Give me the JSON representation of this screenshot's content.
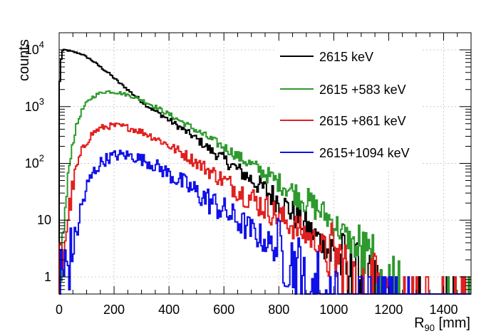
{
  "chart_data": {
    "type": "line",
    "style": "step-histogram",
    "title": "",
    "xlabel": "R",
    "xlabel_sub": "90",
    "xlabel_unit": " [mm]",
    "ylabel": "counts",
    "xlim": [
      0,
      1500
    ],
    "ylim": [
      0.5,
      20000
    ],
    "yscale": "log",
    "grid": true,
    "legend_position": "top-right",
    "x_ticks": [
      {
        "value": 0,
        "label": "0"
      },
      {
        "value": 200,
        "label": "200"
      },
      {
        "value": 400,
        "label": "400"
      },
      {
        "value": 600,
        "label": "600"
      },
      {
        "value": 800,
        "label": "800"
      },
      {
        "value": 1000,
        "label": "1000"
      },
      {
        "value": 1200,
        "label": "1200"
      },
      {
        "value": 1400,
        "label": "1400"
      }
    ],
    "y_ticks": [
      {
        "value": 1,
        "label": "1"
      },
      {
        "value": 10,
        "label": "10"
      },
      {
        "value": 100,
        "label": "10",
        "sup": "2"
      },
      {
        "value": 1000,
        "label": "10",
        "sup": "3"
      },
      {
        "value": 10000,
        "label": "10",
        "sup": "4"
      }
    ],
    "series": [
      {
        "name": "2615 keV",
        "color": "#000000",
        "points": [
          [
            0,
            1500
          ],
          [
            5,
            5000
          ],
          [
            10,
            9500
          ],
          [
            20,
            10000
          ],
          [
            40,
            9500
          ],
          [
            60,
            9000
          ],
          [
            80,
            8500
          ],
          [
            100,
            7500
          ],
          [
            120,
            6500
          ],
          [
            140,
            5500
          ],
          [
            160,
            4600
          ],
          [
            180,
            3900
          ],
          [
            200,
            3200
          ],
          [
            220,
            2600
          ],
          [
            240,
            2200
          ],
          [
            260,
            1800
          ],
          [
            280,
            1500
          ],
          [
            300,
            1250
          ],
          [
            320,
            1050
          ],
          [
            340,
            900
          ],
          [
            360,
            780
          ],
          [
            380,
            680
          ],
          [
            400,
            580
          ],
          [
            420,
            500
          ],
          [
            440,
            430
          ],
          [
            460,
            370
          ],
          [
            480,
            320
          ],
          [
            500,
            270
          ],
          [
            520,
            230
          ],
          [
            540,
            190
          ],
          [
            560,
            160
          ],
          [
            580,
            140
          ],
          [
            600,
            118
          ],
          [
            620,
            100
          ],
          [
            640,
            85
          ],
          [
            660,
            72
          ],
          [
            680,
            62
          ],
          [
            700,
            52
          ],
          [
            720,
            44
          ],
          [
            740,
            37
          ],
          [
            760,
            31
          ],
          [
            780,
            26
          ],
          [
            800,
            22
          ],
          [
            820,
            18
          ],
          [
            840,
            15
          ],
          [
            860,
            12
          ],
          [
            880,
            10
          ],
          [
            900,
            8
          ],
          [
            920,
            6
          ],
          [
            940,
            5
          ],
          [
            960,
            4
          ],
          [
            980,
            3
          ],
          [
            1000,
            2.4
          ],
          [
            1020,
            2
          ],
          [
            1040,
            1.6
          ],
          [
            1060,
            1.3
          ],
          [
            1080,
            1.1
          ],
          [
            1100,
            0.9
          ],
          [
            1120,
            0.75
          ],
          [
            1140,
            0.65
          ],
          [
            1160,
            0.58
          ],
          [
            1180,
            0.52
          ]
        ]
      },
      {
        "name": "2615 +583 keV",
        "color": "#2e9a2e",
        "points": [
          [
            0,
            1
          ],
          [
            20,
            10
          ],
          [
            40,
            130
          ],
          [
            60,
            400
          ],
          [
            80,
            800
          ],
          [
            100,
            1150
          ],
          [
            120,
            1450
          ],
          [
            140,
            1650
          ],
          [
            160,
            1800
          ],
          [
            180,
            1850
          ],
          [
            200,
            1800
          ],
          [
            220,
            1750
          ],
          [
            240,
            1650
          ],
          [
            260,
            1550
          ],
          [
            280,
            1420
          ],
          [
            300,
            1300
          ],
          [
            320,
            1180
          ],
          [
            340,
            1050
          ],
          [
            360,
            940
          ],
          [
            380,
            830
          ],
          [
            400,
            730
          ],
          [
            420,
            640
          ],
          [
            460,
            500
          ],
          [
            500,
            380
          ],
          [
            540,
            290
          ],
          [
            580,
            220
          ],
          [
            620,
            170
          ],
          [
            660,
            125
          ],
          [
            700,
            95
          ],
          [
            740,
            72
          ],
          [
            780,
            53
          ],
          [
            820,
            40
          ],
          [
            860,
            30
          ],
          [
            900,
            22
          ],
          [
            940,
            16
          ],
          [
            980,
            11
          ],
          [
            1000,
            9
          ],
          [
            1020,
            7
          ],
          [
            1040,
            5.5
          ],
          [
            1060,
            4.3
          ],
          [
            1080,
            3.3
          ],
          [
            1100,
            2.5
          ],
          [
            1120,
            1.9
          ],
          [
            1140,
            1.45
          ],
          [
            1160,
            1.1
          ],
          [
            1180,
            0.85
          ],
          [
            1200,
            0.68
          ],
          [
            1220,
            0.58
          ],
          [
            1240,
            0.52
          ]
        ]
      },
      {
        "name": "2615 +861 keV",
        "color": "#e02020",
        "points": [
          [
            0,
            1
          ],
          [
            20,
            4
          ],
          [
            40,
            20
          ],
          [
            60,
            70
          ],
          [
            80,
            150
          ],
          [
            100,
            240
          ],
          [
            120,
            330
          ],
          [
            140,
            390
          ],
          [
            160,
            430
          ],
          [
            180,
            450
          ],
          [
            200,
            460
          ],
          [
            220,
            455
          ],
          [
            240,
            440
          ],
          [
            260,
            415
          ],
          [
            280,
            390
          ],
          [
            300,
            360
          ],
          [
            320,
            330
          ],
          [
            340,
            295
          ],
          [
            360,
            265
          ],
          [
            380,
            235
          ],
          [
            400,
            205
          ],
          [
            420,
            180
          ],
          [
            460,
            140
          ],
          [
            500,
            105
          ],
          [
            540,
            78
          ],
          [
            580,
            58
          ],
          [
            620,
            43
          ],
          [
            660,
            32
          ],
          [
            700,
            24
          ],
          [
            740,
            18
          ],
          [
            780,
            13.5
          ],
          [
            820,
            10
          ],
          [
            860,
            7.5
          ],
          [
            900,
            5.5
          ],
          [
            940,
            4
          ],
          [
            980,
            2.8
          ],
          [
            1000,
            2.3
          ],
          [
            1040,
            1.6
          ],
          [
            1080,
            1.1
          ],
          [
            1120,
            0.8
          ],
          [
            1160,
            0.6
          ],
          [
            1200,
            0.52
          ]
        ]
      },
      {
        "name": "2615+1094 keV",
        "color": "#1010e8",
        "points": [
          [
            0,
            1
          ],
          [
            40,
            2
          ],
          [
            60,
            5
          ],
          [
            80,
            16
          ],
          [
            100,
            35
          ],
          [
            120,
            62
          ],
          [
            140,
            88
          ],
          [
            160,
            110
          ],
          [
            180,
            125
          ],
          [
            200,
            135
          ],
          [
            220,
            140
          ],
          [
            240,
            140
          ],
          [
            260,
            136
          ],
          [
            280,
            128
          ],
          [
            300,
            118
          ],
          [
            320,
            108
          ],
          [
            340,
            97
          ],
          [
            360,
            86
          ],
          [
            380,
            75
          ],
          [
            400,
            65
          ],
          [
            420,
            56
          ],
          [
            460,
            42
          ],
          [
            500,
            31
          ],
          [
            540,
            23
          ],
          [
            580,
            17
          ],
          [
            620,
            12.5
          ],
          [
            660,
            9
          ],
          [
            700,
            6.5
          ],
          [
            740,
            4.7
          ],
          [
            780,
            3.4
          ],
          [
            820,
            2.4
          ],
          [
            860,
            1.7
          ],
          [
            900,
            1.2
          ],
          [
            940,
            0.9
          ],
          [
            980,
            0.68
          ],
          [
            1020,
            0.56
          ]
        ]
      }
    ]
  }
}
